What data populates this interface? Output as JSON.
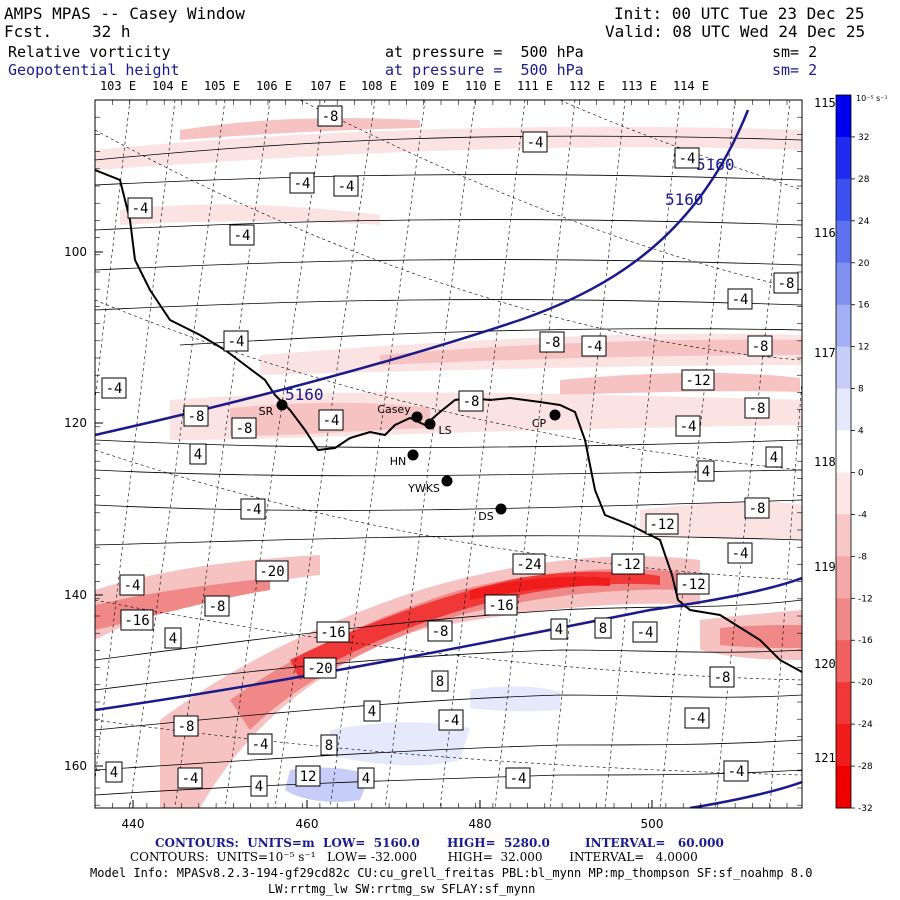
{
  "header": {
    "product": "AMPS MPAS -- Casey Window",
    "forecast_label": "Fcst.",
    "forecast_hours": "32 h",
    "init": "Init: 00 UTC Tue 23 Dec 25",
    "valid": "Valid: 08 UTC Wed 24 Dec 25",
    "field1": "Relative vorticity",
    "field1_level": "at pressure =  500 hPa",
    "field1_sm": "sm= 2",
    "field2": "Geopotential height",
    "field2_level": "at pressure =  500 hPa",
    "field2_sm": "sm= 2"
  },
  "map": {
    "top_lon_labels": [
      "103 E",
      "104 E",
      "105 E",
      "106 E",
      "107 E",
      "108 E",
      "109 E",
      "110 E",
      "111 E",
      "112 E",
      "113 E",
      "114 E"
    ],
    "right_lon_labels": [
      "115 E",
      "116 E",
      "117 E",
      "118 E",
      "119 E",
      "120 E",
      "121 E"
    ],
    "x_ticks": [
      "440",
      "460",
      "480",
      "500"
    ],
    "y_ticks": [
      "100",
      "120",
      "140",
      "160"
    ],
    "stations": [
      {
        "name": "SR"
      },
      {
        "name": "Casey"
      },
      {
        "name": "LS"
      },
      {
        "name": "CP"
      },
      {
        "name": "HN"
      },
      {
        "name": "YWKS"
      },
      {
        "name": "DS"
      }
    ],
    "height_contour_labels": [
      "5160",
      "5160",
      "5160"
    ],
    "vort_labels": [
      "-8",
      "-4",
      "-4",
      "-4",
      "-4",
      "-4",
      "-4",
      "-8",
      "-4",
      "-4",
      "-8",
      "-4",
      "-8",
      "-12",
      "-4",
      "-8",
      "-8",
      "-8",
      "-8",
      "-4",
      "-4",
      "4",
      "4",
      "4",
      "-8",
      "-4",
      "-12",
      "-20",
      "-24",
      "-12",
      "-4",
      "-4",
      "-12",
      "-8",
      "-16",
      "-16",
      "-16",
      "-8",
      "4",
      "8",
      "-4",
      "-20",
      "8",
      "4",
      "-8",
      "-4",
      "4",
      "8",
      "-4",
      "4",
      "12",
      "4",
      "-4",
      "-4",
      "-4",
      "-8",
      "-4",
      "4"
    ],
    "colorbar": {
      "unit": "10⁻⁵ s⁻¹",
      "labels": [
        "32",
        "28",
        "24",
        "20",
        "16",
        "12",
        "8",
        "4",
        "0",
        "-4",
        "-8",
        "-12",
        "-16",
        "-20",
        "-24",
        "-28",
        "-32"
      ],
      "colors": [
        "#0000f0",
        "#1f2cf0",
        "#3d50f0",
        "#5e72f0",
        "#8090f0",
        "#a3b0f4",
        "#c6cdf8",
        "#e6e9fc",
        "#ffffff",
        "#fce6e6",
        "#f8c8c8",
        "#f4a8a8",
        "#f08888",
        "#f06060",
        "#f03838",
        "#f01c1c",
        "#f00000"
      ]
    }
  },
  "footer": {
    "line1_title": "CONTOURS:  UNITS=m  LOW=  5160.0",
    "line1_high": "HIGH=  5280.0",
    "line1_interval": "INTERVAL=   60.000",
    "line2": "CONTOURS:  UNITS=10⁻⁵ s⁻¹   LOW= -32.000        HIGH=  32.000       INTERVAL=   4.0000",
    "model_info": "Model Info: MPASv8.2.3-194-gf29cd82c CU:cu_grell_freitas PBL:bl_mynn MP:mp_thompson SF:sf_noahmp 8.0",
    "physics": "LW:rrtmg_lw SW:rrtmg_sw SFLAY:sf_mynn"
  }
}
